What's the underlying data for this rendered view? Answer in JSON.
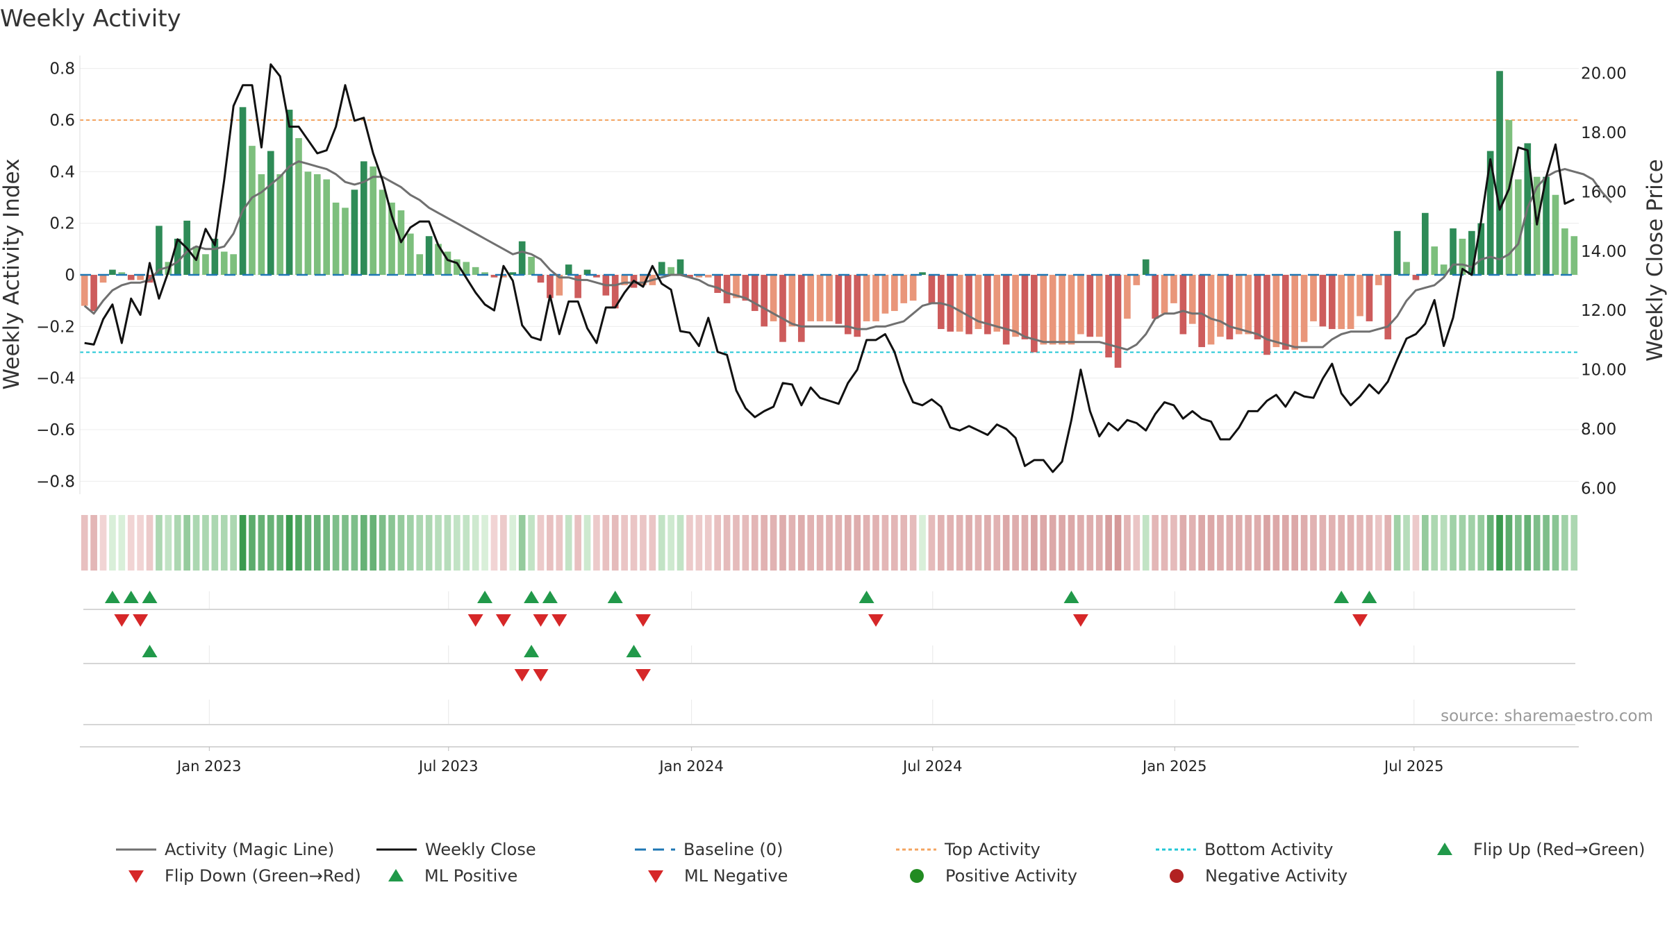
{
  "chart_data": {
    "type": "bar",
    "title": "Weekly Activity",
    "ylabel": "Weekly Activity Index",
    "y2label": "Weekly Close Price",
    "ylim": [
      -0.85,
      0.85
    ],
    "y2lim": [
      5.8,
      20.6
    ],
    "yticks": [
      "0.8",
      "0.6",
      "0.4",
      "0.2",
      "0",
      "−0.2",
      "−0.4",
      "−0.6",
      "−0.8"
    ],
    "y2ticks": [
      "20.00",
      "18.00",
      "16.00",
      "14.00",
      "12.00",
      "10.00",
      "8.00",
      "6.00"
    ],
    "x_start": "2022-09-30",
    "x_dates": [
      "Jan 2023",
      "Jul 2023",
      "Jan 2024",
      "Jul 2024",
      "Jan 2025",
      "Jul 2025"
    ],
    "x_date_week_index": [
      13.9,
      39.6,
      65.7,
      91.6,
      117.6,
      143.3
    ],
    "thresholds": {
      "top": 0.6,
      "bottom": -0.3
    },
    "activity": [
      -0.12,
      -0.14,
      -0.03,
      0.02,
      0.01,
      -0.02,
      -0.02,
      -0.03,
      0.19,
      0.05,
      0.14,
      0.21,
      0.11,
      0.08,
      0.14,
      0.09,
      0.08,
      0.65,
      0.5,
      0.39,
      0.48,
      0.39,
      0.64,
      0.53,
      0.4,
      0.39,
      0.37,
      0.28,
      0.26,
      0.33,
      0.44,
      0.42,
      0.33,
      0.28,
      0.25,
      0.16,
      0.08,
      0.15,
      0.12,
      0.09,
      0.06,
      0.05,
      0.03,
      0.01,
      -0.01,
      -0.01,
      0.01,
      0.13,
      0.07,
      -0.03,
      -0.09,
      -0.08,
      0.04,
      -0.09,
      0.02,
      -0.01,
      -0.08,
      -0.13,
      -0.04,
      -0.05,
      -0.04,
      -0.04,
      0.05,
      0.03,
      0.06,
      -0.01,
      -0.01,
      -0.01,
      -0.07,
      -0.11,
      -0.09,
      -0.1,
      -0.14,
      -0.2,
      -0.18,
      -0.26,
      -0.2,
      -0.26,
      -0.18,
      -0.18,
      -0.18,
      -0.19,
      -0.23,
      -0.24,
      -0.18,
      -0.18,
      -0.15,
      -0.14,
      -0.11,
      -0.1,
      0.01,
      -0.11,
      -0.21,
      -0.22,
      -0.22,
      -0.23,
      -0.21,
      -0.23,
      -0.22,
      -0.27,
      -0.24,
      -0.25,
      -0.3,
      -0.27,
      -0.27,
      -0.27,
      -0.27,
      -0.23,
      -0.24,
      -0.24,
      -0.32,
      -0.36,
      -0.17,
      -0.04,
      0.06,
      -0.17,
      -0.15,
      -0.11,
      -0.23,
      -0.19,
      -0.28,
      -0.27,
      -0.24,
      -0.25,
      -0.23,
      -0.23,
      -0.25,
      -0.31,
      -0.28,
      -0.29,
      -0.29,
      -0.26,
      -0.18,
      -0.2,
      -0.21,
      -0.21,
      -0.21,
      -0.16,
      -0.18,
      -0.04,
      -0.25,
      0.17,
      0.05,
      -0.02,
      0.24,
      0.11,
      0.04,
      0.18,
      0.14,
      0.17,
      0.2,
      0.48,
      0.79,
      0.6,
      0.37,
      0.51,
      0.38,
      0.38,
      0.31,
      0.18,
      0.15
    ],
    "magic_line": [
      -0.12,
      -0.15,
      -0.1,
      -0.06,
      -0.04,
      -0.03,
      -0.03,
      -0.02,
      0.02,
      0.03,
      0.05,
      0.09,
      0.11,
      0.1,
      0.1,
      0.11,
      0.16,
      0.25,
      0.3,
      0.32,
      0.35,
      0.38,
      0.42,
      0.44,
      0.43,
      0.42,
      0.41,
      0.39,
      0.36,
      0.35,
      0.36,
      0.38,
      0.38,
      0.36,
      0.34,
      0.31,
      0.29,
      0.26,
      0.24,
      0.22,
      0.2,
      0.18,
      0.16,
      0.14,
      0.12,
      0.1,
      0.08,
      0.09,
      0.08,
      0.06,
      0.02,
      -0.01,
      -0.01,
      -0.02,
      -0.02,
      -0.03,
      -0.04,
      -0.04,
      -0.03,
      -0.03,
      -0.03,
      -0.02,
      -0.01,
      0.0,
      0.0,
      -0.01,
      -0.02,
      -0.04,
      -0.05,
      -0.07,
      -0.08,
      -0.09,
      -0.11,
      -0.13,
      -0.15,
      -0.17,
      -0.19,
      -0.2,
      -0.2,
      -0.2,
      -0.2,
      -0.2,
      -0.2,
      -0.21,
      -0.21,
      -0.2,
      -0.2,
      -0.19,
      -0.18,
      -0.15,
      -0.12,
      -0.11,
      -0.11,
      -0.12,
      -0.14,
      -0.16,
      -0.18,
      -0.19,
      -0.2,
      -0.21,
      -0.22,
      -0.24,
      -0.25,
      -0.26,
      -0.26,
      -0.26,
      -0.26,
      -0.26,
      -0.26,
      -0.26,
      -0.27,
      -0.28,
      -0.29,
      -0.27,
      -0.23,
      -0.17,
      -0.15,
      -0.15,
      -0.14,
      -0.15,
      -0.15,
      -0.17,
      -0.18,
      -0.2,
      -0.21,
      -0.22,
      -0.23,
      -0.25,
      -0.26,
      -0.27,
      -0.28,
      -0.28,
      -0.28,
      -0.28,
      -0.25,
      -0.23,
      -0.22,
      -0.22,
      -0.22,
      -0.21,
      -0.2,
      -0.16,
      -0.1,
      -0.06,
      -0.05,
      -0.04,
      -0.01,
      0.04,
      0.04,
      0.03,
      0.06,
      0.07,
      0.06,
      0.08,
      0.12,
      0.26,
      0.34,
      0.38,
      0.4,
      0.41,
      0.4,
      0.39,
      0.37,
      0.32,
      0.28
    ],
    "weekly_close": [
      10.9,
      10.85,
      11.7,
      12.2,
      10.9,
      12.4,
      11.85,
      13.6,
      12.4,
      13.3,
      14.4,
      14.1,
      13.7,
      14.75,
      14.2,
      16.4,
      18.9,
      19.6,
      19.6,
      17.5,
      20.3,
      19.9,
      18.2,
      18.2,
      17.75,
      17.3,
      17.4,
      18.2,
      19.6,
      18.4,
      18.5,
      17.3,
      16.4,
      15.2,
      14.3,
      14.8,
      15.0,
      15.0,
      14.2,
      13.7,
      13.6,
      13.1,
      12.6,
      12.2,
      12.0,
      13.5,
      13.0,
      11.5,
      11.1,
      11.0,
      12.5,
      11.2,
      12.3,
      12.3,
      11.4,
      10.9,
      12.1,
      12.1,
      12.6,
      13.0,
      12.8,
      13.5,
      12.9,
      12.7,
      11.3,
      11.25,
      10.8,
      11.75,
      10.6,
      10.5,
      9.3,
      8.7,
      8.4,
      8.6,
      8.75,
      9.55,
      9.5,
      8.8,
      9.4,
      9.05,
      8.95,
      8.85,
      9.55,
      10.0,
      11.0,
      11.0,
      11.2,
      10.6,
      9.6,
      8.9,
      8.8,
      9.0,
      8.75,
      8.05,
      7.95,
      8.1,
      7.95,
      7.8,
      8.15,
      8.0,
      7.7,
      6.75,
      6.95,
      6.95,
      6.55,
      6.9,
      8.3,
      10.0,
      8.6,
      7.75,
      8.2,
      7.95,
      8.3,
      8.2,
      7.95,
      8.5,
      8.9,
      8.8,
      8.35,
      8.6,
      8.35,
      8.25,
      7.65,
      7.65,
      8.05,
      8.6,
      8.6,
      8.95,
      9.15,
      8.75,
      9.25,
      9.1,
      9.05,
      9.7,
      10.2,
      9.2,
      8.8,
      9.1,
      9.5,
      9.2,
      9.6,
      10.35,
      11.05,
      11.2,
      11.55,
      12.35,
      10.8,
      11.75,
      13.4,
      13.2,
      15.0,
      17.1,
      15.4,
      16.1,
      17.5,
      17.4,
      14.9,
      16.5,
      17.6,
      15.6,
      15.75
    ],
    "heat_strip": [
      -0.4,
      -0.5,
      -0.2,
      0.3,
      0.2,
      -0.2,
      -0.2,
      -0.3,
      0.5,
      0.4,
      0.5,
      0.6,
      0.5,
      0.5,
      0.5,
      0.5,
      0.5,
      1.0,
      0.85,
      0.8,
      0.8,
      0.8,
      1.0,
      0.9,
      0.8,
      0.8,
      0.75,
      0.7,
      0.7,
      0.7,
      0.8,
      0.8,
      0.7,
      0.65,
      0.6,
      0.55,
      0.5,
      0.5,
      0.45,
      0.45,
      0.4,
      0.4,
      0.35,
      0.3,
      -0.2,
      -0.3,
      0.3,
      0.6,
      0.4,
      -0.3,
      -0.4,
      -0.35,
      0.4,
      -0.4,
      0.35,
      -0.3,
      -0.4,
      -0.45,
      -0.35,
      -0.35,
      -0.35,
      -0.35,
      0.4,
      0.35,
      0.4,
      -0.3,
      -0.3,
      -0.3,
      -0.4,
      -0.45,
      -0.45,
      -0.45,
      -0.5,
      -0.55,
      -0.55,
      -0.6,
      -0.55,
      -0.6,
      -0.55,
      -0.55,
      -0.55,
      -0.55,
      -0.6,
      -0.6,
      -0.55,
      -0.55,
      -0.5,
      -0.5,
      -0.5,
      -0.45,
      0.3,
      -0.45,
      -0.55,
      -0.55,
      -0.55,
      -0.6,
      -0.55,
      -0.6,
      -0.55,
      -0.65,
      -0.6,
      -0.6,
      -0.7,
      -0.65,
      -0.65,
      -0.65,
      -0.65,
      -0.6,
      -0.6,
      -0.6,
      -0.75,
      -0.8,
      -0.5,
      -0.35,
      0.4,
      -0.5,
      -0.5,
      -0.45,
      -0.6,
      -0.55,
      -0.65,
      -0.65,
      -0.6,
      -0.6,
      -0.6,
      -0.6,
      -0.6,
      -0.7,
      -0.65,
      -0.65,
      -0.65,
      -0.6,
      -0.55,
      -0.55,
      -0.55,
      -0.55,
      -0.55,
      -0.5,
      -0.5,
      -0.35,
      -0.55,
      0.55,
      0.45,
      -0.3,
      0.6,
      0.5,
      0.45,
      0.55,
      0.55,
      0.55,
      0.6,
      0.8,
      1.0,
      0.85,
      0.7,
      0.8,
      0.7,
      0.7,
      0.65,
      0.55,
      0.5
    ],
    "flip_up_weeks": [
      3,
      5,
      7,
      43,
      48,
      50,
      57,
      84,
      106,
      135,
      138
    ],
    "flip_down_weeks": [
      4,
      6,
      42,
      45,
      49,
      51,
      60,
      85,
      107,
      137
    ],
    "ml_positive_weeks": [
      7,
      48,
      59
    ],
    "ml_negative_weeks": [
      47,
      49,
      60
    ],
    "legend": [
      "Activity (Magic Line)",
      "Weekly Close",
      "Baseline (0)",
      "Top Activity",
      "Bottom Activity",
      "Flip Up (Red→Green)",
      "Flip Down (Green→Red)",
      "ML Positive",
      "ML Negative",
      "Positive Activity",
      "Negative Activity"
    ],
    "source": "source: sharemaestro.com"
  },
  "colors": {
    "pos_strong": "#2e8b57",
    "pos_light": "#7dbf7d",
    "neg_strong": "#cd5c5c",
    "neg_light": "#e9967a",
    "magic_line": "#707070",
    "close_line": "#111111",
    "baseline": "#1f77b4",
    "top_line": "#f4a460",
    "bottom_line": "#22c7d6",
    "marker_up": "#21994a",
    "marker_down": "#d62728",
    "legend_pos_dot": "#228b22",
    "legend_neg_dot": "#b22222"
  }
}
